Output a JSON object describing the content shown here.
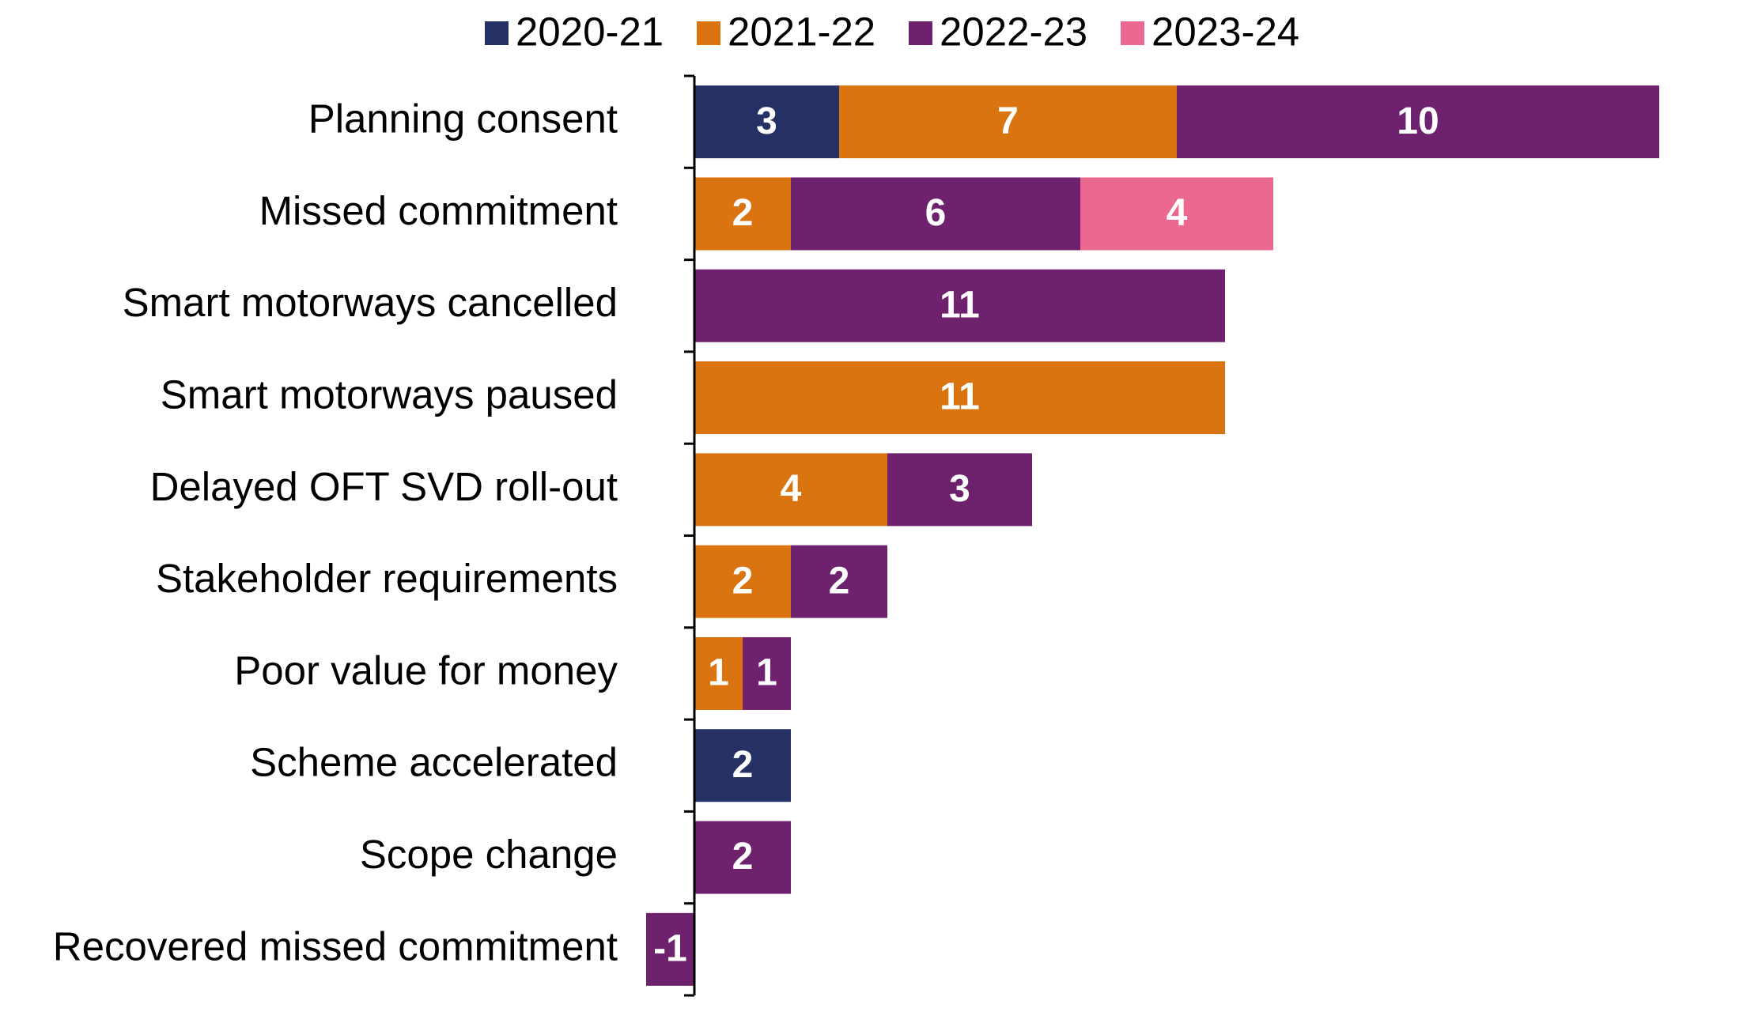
{
  "chart_data": {
    "type": "bar",
    "orientation": "horizontal",
    "stacked": true,
    "categories": [
      "Planning consent",
      "Missed commitment",
      "Smart motorways cancelled",
      "Smart motorways paused",
      "Delayed OFT SVD roll-out",
      "Stakeholder requirements",
      "Poor value for money",
      "Scheme accelerated",
      "Scope change",
      "Recovered missed commitment"
    ],
    "series": [
      {
        "name": "2020-21",
        "color": "#253165",
        "values": [
          3,
          null,
          null,
          null,
          null,
          null,
          null,
          2,
          null,
          null
        ]
      },
      {
        "name": "2021-22",
        "color": "#d97411",
        "values": [
          7,
          2,
          null,
          11,
          4,
          2,
          1,
          null,
          null,
          null
        ]
      },
      {
        "name": "2022-23",
        "color": "#6e226e",
        "values": [
          10,
          6,
          11,
          null,
          3,
          2,
          1,
          null,
          2,
          -1
        ]
      },
      {
        "name": "2023-24",
        "color": "#eb6891",
        "values": [
          null,
          4,
          null,
          null,
          null,
          null,
          null,
          null,
          null,
          null
        ]
      }
    ],
    "xlim": [
      -1,
      21
    ],
    "legend": "top"
  }
}
